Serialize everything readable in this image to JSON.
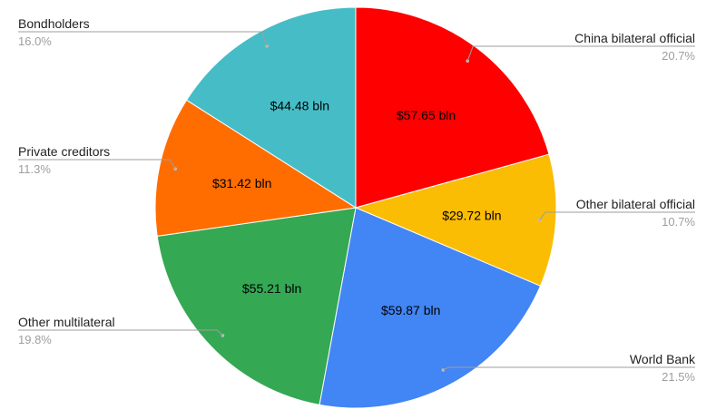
{
  "chart_data": {
    "type": "pie",
    "start_angle_deg": 0,
    "direction": "clockwise",
    "legend": "callout-labels",
    "slices": [
      {
        "name": "China bilateral official",
        "value": 57.65,
        "value_label": "$57.65 bln",
        "percent_label": "20.7%",
        "color": "#ff0000",
        "callout_side": "right"
      },
      {
        "name": "Other bilateral official",
        "value": 29.72,
        "value_label": "$29.72 bln",
        "percent_label": "10.7%",
        "color": "#fbbc04",
        "callout_side": "right"
      },
      {
        "name": "World Bank",
        "value": 59.87,
        "value_label": "$59.87 bln",
        "percent_label": "21.5%",
        "color": "#4285f4",
        "callout_side": "right"
      },
      {
        "name": "Other multilateral",
        "value": 55.21,
        "value_label": "$55.21 bln",
        "percent_label": "19.8%",
        "color": "#34a853",
        "callout_side": "left"
      },
      {
        "name": "Private creditors",
        "value": 31.42,
        "value_label": "$31.42 bln",
        "percent_label": "11.3%",
        "color": "#ff6d01",
        "callout_side": "left"
      },
      {
        "name": "Bondholders",
        "value": 44.48,
        "value_label": "$44.48 bln",
        "percent_label": "16.0%",
        "color": "#46bdc6",
        "callout_side": "left"
      }
    ]
  }
}
